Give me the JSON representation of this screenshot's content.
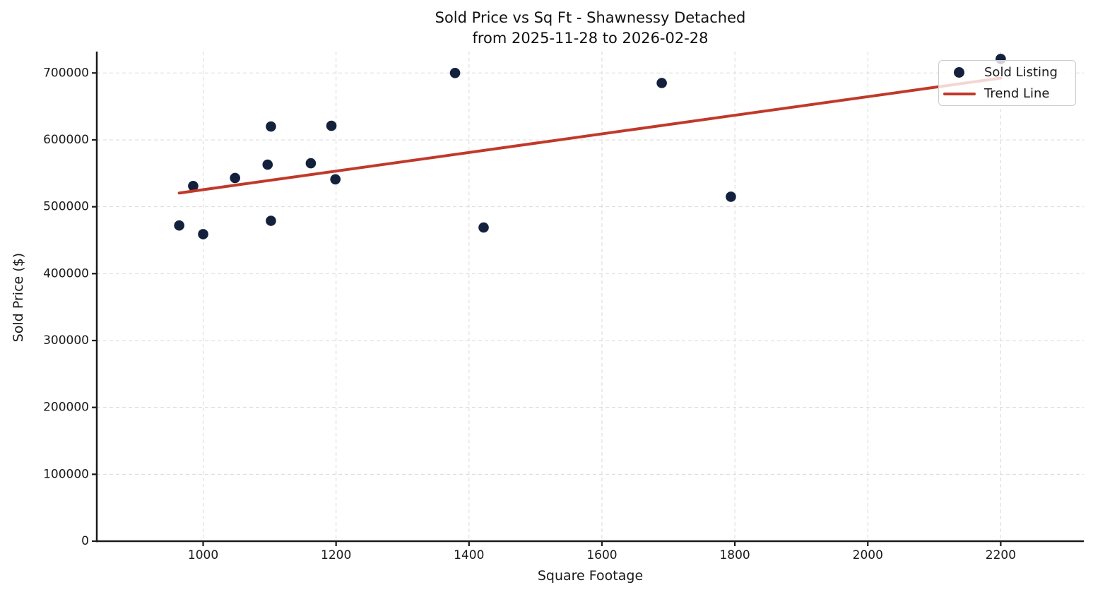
{
  "chart_data": {
    "type": "scatter",
    "title": "Sold Price vs Sq Ft - Shawnessy Detached",
    "subtitle": "from 2025-11-28 to 2026-02-28",
    "xlabel": "Square Footage",
    "ylabel": "Sold Price ($)",
    "xlim": [
      840,
      2325
    ],
    "ylim": [
      0,
      732000
    ],
    "x_ticks": [
      1000,
      1200,
      1400,
      1600,
      1800,
      2000,
      2200
    ],
    "y_ticks": [
      0,
      100000,
      200000,
      300000,
      400000,
      500000,
      600000,
      700000
    ],
    "grid": {
      "visible": true,
      "style": "dashed"
    },
    "colors": {
      "scatter": "#14213d",
      "trend": "#c0392b",
      "grid": "#d9d9d9",
      "spine": "#1a1a1a",
      "text": "#1a1a1a",
      "legend_border": "#cccccc"
    },
    "legend": {
      "position": "upper-right",
      "entries": [
        {
          "label": "Sold Listing",
          "marker": "dot",
          "color": "#14213d"
        },
        {
          "label": "Trend Line",
          "marker": "line",
          "color": "#c0392b"
        }
      ]
    },
    "series": [
      {
        "name": "Sold Listing",
        "type": "scatter",
        "color": "#14213d",
        "points": [
          [
            964,
            472000
          ],
          [
            985,
            531000
          ],
          [
            1000,
            459000
          ],
          [
            1048,
            543000
          ],
          [
            1097,
            563000
          ],
          [
            1102,
            620000
          ],
          [
            1102,
            479000
          ],
          [
            1162,
            565000
          ],
          [
            1193,
            621000
          ],
          [
            1199,
            541000
          ],
          [
            1379,
            700000
          ],
          [
            1422,
            469000
          ],
          [
            1690,
            685000
          ],
          [
            1794,
            515000
          ],
          [
            2200,
            721000
          ]
        ]
      },
      {
        "name": "Trend Line",
        "type": "line",
        "color": "#c0392b",
        "points": [
          [
            964,
            520500
          ],
          [
            2200,
            692400
          ]
        ]
      }
    ]
  }
}
